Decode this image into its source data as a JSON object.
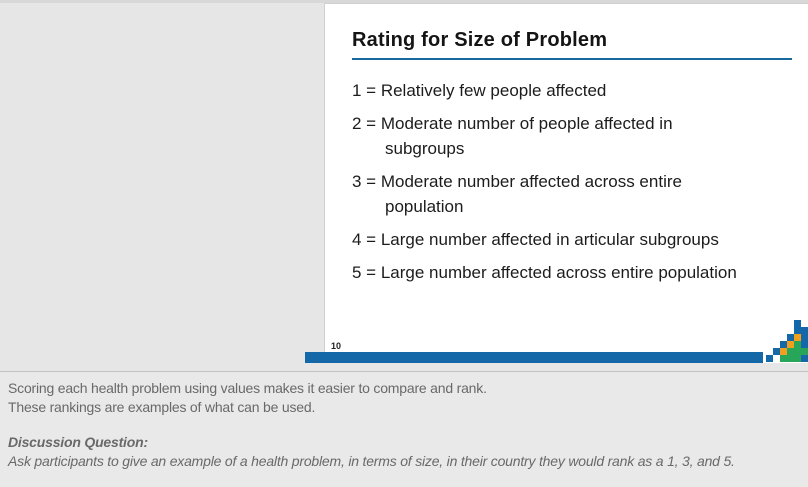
{
  "slide": {
    "page_number": "10",
    "title": "Rating for Size of Problem",
    "items": [
      {
        "lines": [
          "1 = Relatively few people affected"
        ]
      },
      {
        "lines": [
          "2 = Moderate number of people affected in",
          "subgroups"
        ]
      },
      {
        "lines": [
          "3 = Moderate number affected across entire",
          "population"
        ]
      },
      {
        "lines": [
          "4 = Large number affected in articular subgroups"
        ]
      },
      {
        "lines": [
          "5 = Large number affected across entire population"
        ]
      }
    ],
    "colors": {
      "bar": "#1568a8",
      "title_underline": "#17699e"
    }
  },
  "logo": {
    "colors": {
      "B": "#1568a8",
      "O": "#f0a01e",
      "G": "#27a65a"
    },
    "grid": [
      [
        "",
        "",
        "",
        "",
        "B",
        ""
      ],
      [
        "",
        "",
        "",
        "",
        "B",
        "B"
      ],
      [
        "",
        "",
        "",
        "B",
        "O",
        "B"
      ],
      [
        "",
        "",
        "B",
        "O",
        "G",
        "B"
      ],
      [
        "",
        "B",
        "O",
        "G",
        "G",
        "G"
      ],
      [
        "B",
        "",
        "G",
        "G",
        "G",
        "B"
      ]
    ]
  },
  "notes": {
    "line1": "Scoring each health problem using values makes it easier to compare and rank.",
    "line2": "These rankings are examples of what can be used.",
    "discussion_label": "Discussion Question:",
    "discussion_text": "Ask participants to give an example of a health problem, in terms of size, in their country they would rank as a 1, 3, and 5."
  }
}
